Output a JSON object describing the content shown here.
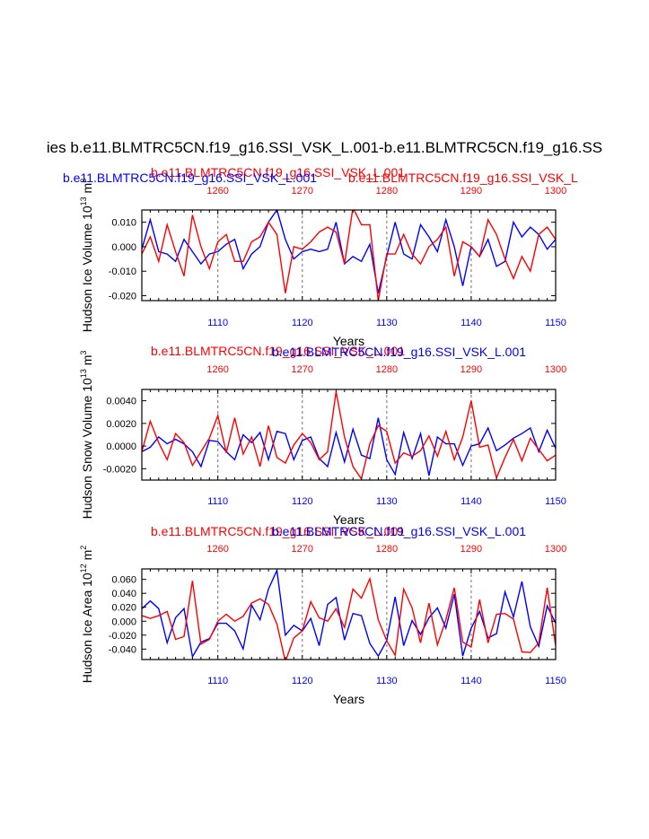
{
  "figure_title": "ies b.e11.BLMTRC5CN.f19_g16.SSI_VSK_L.001-b.e11.BLMTRC5CN.f19_g16.SS",
  "colors": {
    "blue_series": "#0000ff",
    "red_series": "#ff0000",
    "axis": "#000000",
    "grid": "#888888"
  },
  "chart_data": [
    {
      "type": "line",
      "panel": "top",
      "ylabel": "Hudson Ice Volume 10",
      "ylabel_exp": "13",
      "ylabel_unit": " m",
      "ylabel_unit_exp": "3",
      "xlabel": "Years",
      "top_labels": {
        "red": "b.e11.BLMTRC5CN.f19_g16.SSI_VSK_L.001",
        "blue": "b.e11.BLMTRC5CN.f19_g16.SSI_VSK_L.001",
        "red_overlap": "b.e11.BLMTRC5CN.f19_g16.SSI_VSK_L"
      },
      "x_bottom": {
        "range": [
          1101,
          1150
        ],
        "ticks": [
          1110,
          1120,
          1130,
          1140,
          1150
        ]
      },
      "x_top": {
        "range": [
          1251,
          1300
        ],
        "ticks": [
          1260,
          1270,
          1280,
          1290,
          1300
        ]
      },
      "ylim": [
        -0.022,
        0.015
      ],
      "yticks": [
        0.01,
        0.0,
        -0.01,
        -0.02
      ],
      "ytick_labels": [
        "0.010",
        "0.000",
        "-0.010",
        "-0.020"
      ],
      "series": [
        {
          "name": "blue",
          "color": "#0000ff",
          "values": [
            -0.001,
            0.011,
            -0.002,
            -0.003,
            -0.006,
            0.003,
            -0.002,
            -0.007,
            -0.003,
            -0.002,
            0.001,
            0.003,
            -0.009,
            -0.003,
            0.0,
            0.01,
            0.015,
            0.003,
            -0.005,
            -0.002,
            -0.001,
            -0.002,
            -0.001,
            0.01,
            -0.007,
            -0.004,
            -0.006,
            0.001,
            -0.019,
            -0.004,
            0.01,
            -0.003,
            -0.005,
            0.009,
            0.004,
            -0.002,
            0.011,
            0.0,
            -0.016,
            0.0,
            -0.004,
            0.003,
            -0.008,
            -0.006,
            0.01,
            0.004,
            0.008,
            0.005,
            -0.001,
            0.003
          ]
        },
        {
          "name": "red",
          "color": "#ff0000",
          "values": [
            -0.003,
            0.004,
            -0.006,
            0.009,
            -0.002,
            -0.012,
            0.013,
            0.0,
            -0.009,
            0.002,
            0.005,
            -0.006,
            -0.006,
            0.002,
            0.004,
            0.01,
            0.005,
            -0.019,
            0.0,
            -0.001,
            0.002,
            0.006,
            0.008,
            0.006,
            -0.007,
            0.016,
            0.009,
            0.009,
            -0.022,
            -0.003,
            -0.003,
            0.005,
            -0.003,
            -0.007,
            0.0,
            0.003,
            0.008,
            -0.012,
            0.002,
            0.0,
            -0.004,
            0.011,
            0.005,
            -0.005,
            -0.013,
            -0.004,
            -0.01,
            0.005,
            0.008,
            0.003
          ]
        }
      ]
    },
    {
      "type": "line",
      "panel": "middle",
      "ylabel": "Hudson Snow Volume 10",
      "ylabel_exp": "13",
      "ylabel_unit": " m",
      "ylabel_unit_exp": "3",
      "xlabel": "Years",
      "top_labels": {
        "red": "b.e11.BLMTRC5CN.f19_g16.SSI_VSK_L.001",
        "blue": "b.e11.BLMTRC5CN.f19_g16.SSI_VSK_L.001"
      },
      "x_bottom": {
        "range": [
          1101,
          1150
        ],
        "ticks": [
          1110,
          1120,
          1130,
          1140,
          1150
        ]
      },
      "x_top": {
        "range": [
          1251,
          1300
        ],
        "ticks": [
          1260,
          1270,
          1280,
          1290,
          1300
        ]
      },
      "ylim": [
        -0.003,
        0.005
      ],
      "yticks": [
        0.004,
        0.002,
        0.0,
        -0.002
      ],
      "ytick_labels": [
        "0.0040",
        "0.0020",
        "0.0000",
        "-0.0020"
      ],
      "series": [
        {
          "name": "blue",
          "color": "#0000ff",
          "values": [
            -0.0005,
            -0.0001,
            0.0008,
            0.0002,
            0.0006,
            0.0002,
            -0.0005,
            -0.0018,
            0.0005,
            0.0004,
            -0.0005,
            -0.0012,
            0.001,
            0.0003,
            0.0012,
            -0.0012,
            0.0013,
            0.0011,
            -0.0012,
            0.0005,
            0.0008,
            -0.0011,
            -0.0018,
            0.0012,
            -0.0014,
            0.0015,
            -0.0008,
            -0.0011,
            0.0025,
            -0.0012,
            -0.0025,
            0.0012,
            -0.0011,
            0.0011,
            -0.0026,
            0.0008,
            0.0002,
            0.0002,
            -0.0017,
            0.0,
            0.0002,
            0.0016,
            -0.0004,
            0.0001,
            0.0007,
            0.0011,
            0.0016,
            -0.0005,
            0.0014,
            -0.0002
          ]
        },
        {
          "name": "red",
          "color": "#ff0000",
          "values": [
            -0.0005,
            0.0022,
            0.0003,
            -0.0012,
            0.0011,
            0.0003,
            -0.0017,
            -0.0005,
            0.0007,
            0.0027,
            -0.0006,
            0.0025,
            -0.0007,
            0.0008,
            -0.0018,
            0.0018,
            -0.001,
            -0.0015,
            0.0001,
            0.0011,
            0.0003,
            -0.0012,
            -0.0005,
            0.0048,
            0.0008,
            -0.0018,
            -0.0029,
            0.0002,
            0.0018,
            0.0013,
            -0.0015,
            -0.0006,
            -0.0009,
            -0.0004,
            0.0009,
            -0.0009,
            0.0013,
            -0.0012,
            0.0008,
            0.004,
            -0.0001,
            0.0001,
            -0.0028,
            -0.001,
            0.0006,
            -0.0013,
            0.0007,
            -0.0003,
            -0.0013,
            -0.0008
          ]
        }
      ]
    },
    {
      "type": "line",
      "panel": "bottom",
      "ylabel": "Hudson Ice Area 10",
      "ylabel_exp": "12",
      "ylabel_unit": " m",
      "ylabel_unit_exp": "2",
      "xlabel": "Years",
      "top_labels": {
        "red": "b.e11.BLMTRC5CN.f19_g16.SSI_VSK_L.001",
        "blue": "b.e11.BLMTRC5CN.f19_g16.SSI_VSK_L.001"
      },
      "x_bottom": {
        "range": [
          1101,
          1150
        ],
        "ticks": [
          1110,
          1120,
          1130,
          1140,
          1150
        ]
      },
      "x_top": {
        "range": [
          1251,
          1300
        ],
        "ticks": [
          1260,
          1270,
          1280,
          1290,
          1300
        ]
      },
      "ylim": [
        -0.055,
        0.075
      ],
      "yticks": [
        0.06,
        0.04,
        0.02,
        0.0,
        -0.02,
        -0.04
      ],
      "ytick_labels": [
        "0.060",
        "0.040",
        "0.020",
        "0.000",
        "-0.020",
        "-0.040"
      ],
      "series": [
        {
          "name": "blue",
          "color": "#0000ff",
          "values": [
            0.018,
            0.029,
            0.018,
            -0.031,
            0.005,
            0.018,
            -0.051,
            -0.03,
            -0.025,
            -0.003,
            -0.003,
            -0.014,
            -0.04,
            0.023,
            0.002,
            0.046,
            0.073,
            -0.02,
            -0.006,
            -0.014,
            0.004,
            -0.035,
            0.024,
            0.034,
            -0.027,
            0.011,
            0.008,
            -0.032,
            -0.05,
            -0.028,
            0.035,
            -0.035,
            0.001,
            -0.019,
            0.005,
            0.019,
            -0.01,
            0.039,
            -0.05,
            -0.01,
            0.014,
            -0.024,
            -0.018,
            0.042,
            0.006,
            0.057,
            -0.008,
            -0.036,
            0.022,
            -0.003
          ]
        },
        {
          "name": "red",
          "color": "#ff0000",
          "values": [
            0.008,
            0.004,
            0.008,
            0.014,
            -0.026,
            -0.022,
            0.058,
            -0.033,
            -0.026,
            0.0,
            0.01,
            0.0,
            0.007,
            0.026,
            0.032,
            0.024,
            -0.004,
            -0.058,
            -0.024,
            -0.014,
            0.028,
            0.005,
            0.0,
            0.018,
            -0.009,
            0.046,
            0.033,
            0.061,
            0.002,
            -0.028,
            -0.049,
            0.046,
            0.019,
            -0.031,
            0.026,
            -0.034,
            0.002,
            0.048,
            -0.03,
            -0.037,
            0.031,
            -0.031,
            0.01,
            0.011,
            0.003,
            -0.044,
            -0.045,
            -0.031,
            0.048,
            -0.035
          ]
        }
      ]
    }
  ]
}
